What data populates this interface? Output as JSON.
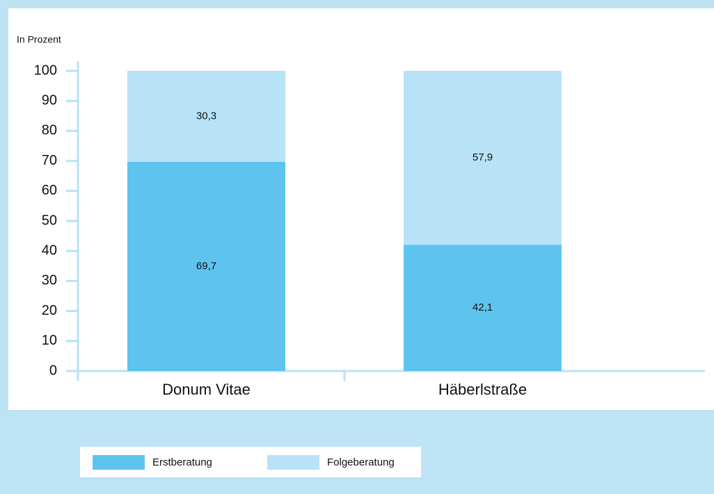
{
  "chart_data": {
    "type": "stacked_bar",
    "ylabel": "In Prozent",
    "categories": [
      "Donum Vitae",
      "Häberlstraße"
    ],
    "series": [
      {
        "name": "Erstberatung",
        "color": "#5ec4ef",
        "values": [
          69.7,
          42.1
        ],
        "value_labels": [
          "69,7",
          "42,1"
        ]
      },
      {
        "name": "Folgeberatung",
        "color": "#b8e2f6",
        "values": [
          30.3,
          57.9
        ],
        "value_labels": [
          "30,3",
          "57,9"
        ]
      }
    ],
    "ylim": [
      0,
      100
    ],
    "yticks": [
      0,
      10,
      20,
      30,
      40,
      50,
      60,
      70,
      80,
      90,
      100
    ],
    "legend": "bottom"
  }
}
